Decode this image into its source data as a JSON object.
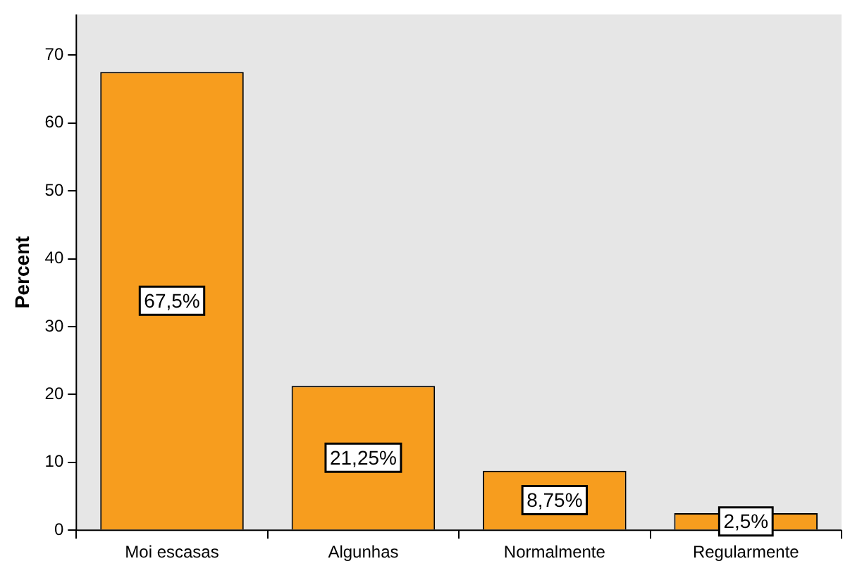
{
  "chart_data": {
    "type": "bar",
    "ylabel": "Percent",
    "categories": [
      "Moi escasas",
      "Algunhas",
      "Normalmente",
      "Regularmente"
    ],
    "values": [
      67.5,
      21.25,
      8.75,
      2.5
    ],
    "value_labels": [
      "67,5%",
      "21,25%",
      "8,75%",
      "2,5%"
    ],
    "color": "#f79d1e",
    "ylim": [
      0,
      76
    ],
    "yticks": [
      0,
      10,
      20,
      30,
      40,
      50,
      60,
      70
    ],
    "legend": false
  }
}
